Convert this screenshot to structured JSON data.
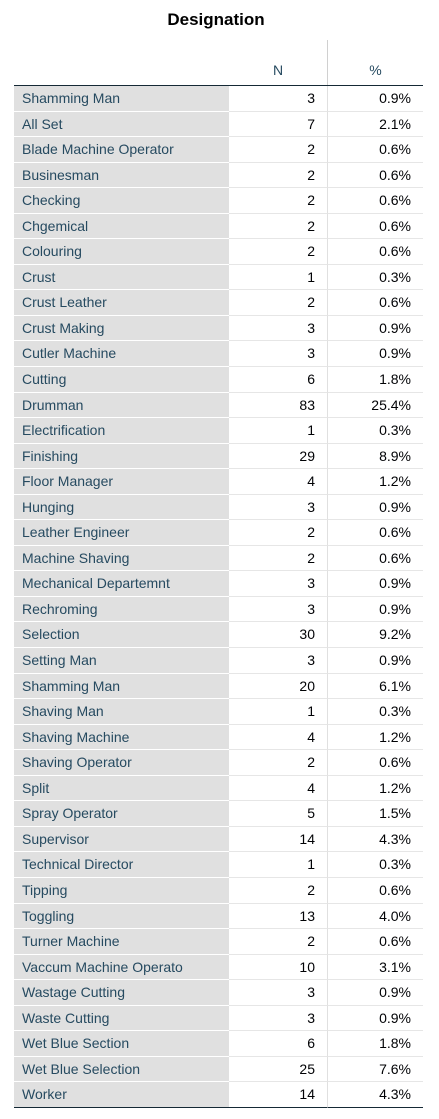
{
  "table": {
    "title": "Designation",
    "headers": {
      "n": "N",
      "pct": "%"
    },
    "rows": [
      {
        "label": " Shamming Man",
        "n": "3",
        "pct": "0.9%"
      },
      {
        "label": "All Set",
        "n": "7",
        "pct": "2.1%"
      },
      {
        "label": "Blade Machine Operator",
        "n": "2",
        "pct": "0.6%"
      },
      {
        "label": "Businesman",
        "n": "2",
        "pct": "0.6%"
      },
      {
        "label": "Checking",
        "n": "2",
        "pct": "0.6%"
      },
      {
        "label": "Chgemical",
        "n": "2",
        "pct": "0.6%"
      },
      {
        "label": "Colouring",
        "n": "2",
        "pct": "0.6%"
      },
      {
        "label": "Crust",
        "n": "1",
        "pct": "0.3%"
      },
      {
        "label": "Crust Leather",
        "n": "2",
        "pct": "0.6%"
      },
      {
        "label": "Crust Making",
        "n": "3",
        "pct": "0.9%"
      },
      {
        "label": "Cutler Machine",
        "n": "3",
        "pct": "0.9%"
      },
      {
        "label": "Cutting",
        "n": "6",
        "pct": "1.8%"
      },
      {
        "label": "Drumman",
        "n": "83",
        "pct": "25.4%"
      },
      {
        "label": "Electrification",
        "n": "1",
        "pct": "0.3%"
      },
      {
        "label": "Finishing",
        "n": "29",
        "pct": "8.9%"
      },
      {
        "label": "Floor Manager",
        "n": "4",
        "pct": "1.2%"
      },
      {
        "label": "Hunging",
        "n": "3",
        "pct": "0.9%"
      },
      {
        "label": "Leather Engineer",
        "n": "2",
        "pct": "0.6%"
      },
      {
        "label": "Machine Shaving",
        "n": "2",
        "pct": "0.6%"
      },
      {
        "label": "Mechanical Departemnt",
        "n": "3",
        "pct": "0.9%"
      },
      {
        "label": "Rechroming",
        "n": "3",
        "pct": "0.9%"
      },
      {
        "label": "Selection",
        "n": "30",
        "pct": "9.2%"
      },
      {
        "label": "Setting Man",
        "n": "3",
        "pct": "0.9%"
      },
      {
        "label": "Shamming Man",
        "n": "20",
        "pct": "6.1%"
      },
      {
        "label": "Shaving  Man",
        "n": "1",
        "pct": "0.3%"
      },
      {
        "label": "Shaving Machine",
        "n": "4",
        "pct": "1.2%"
      },
      {
        "label": "Shaving Operator",
        "n": "2",
        "pct": "0.6%"
      },
      {
        "label": "Split",
        "n": "4",
        "pct": "1.2%"
      },
      {
        "label": "Spray Operator",
        "n": "5",
        "pct": "1.5%"
      },
      {
        "label": "Supervisor",
        "n": "14",
        "pct": "4.3%"
      },
      {
        "label": "Technical Director",
        "n": "1",
        "pct": "0.3%"
      },
      {
        "label": "Tipping",
        "n": "2",
        "pct": "0.6%"
      },
      {
        "label": "Toggling",
        "n": "13",
        "pct": "4.0%"
      },
      {
        "label": "Turner Machine",
        "n": "2",
        "pct": "0.6%"
      },
      {
        "label": "Vaccum Machine Operato",
        "n": "10",
        "pct": "3.1%"
      },
      {
        "label": "Wastage Cutting",
        "n": "3",
        "pct": "0.9%"
      },
      {
        "label": "Waste Cutting",
        "n": "3",
        "pct": "0.9%"
      },
      {
        "label": "Wet Blue Section",
        "n": "6",
        "pct": "1.8%"
      },
      {
        "label": "Wet Blue Selection",
        "n": "25",
        "pct": "7.6%"
      },
      {
        "label": "Worker",
        "n": "14",
        "pct": "4.3%"
      }
    ]
  }
}
